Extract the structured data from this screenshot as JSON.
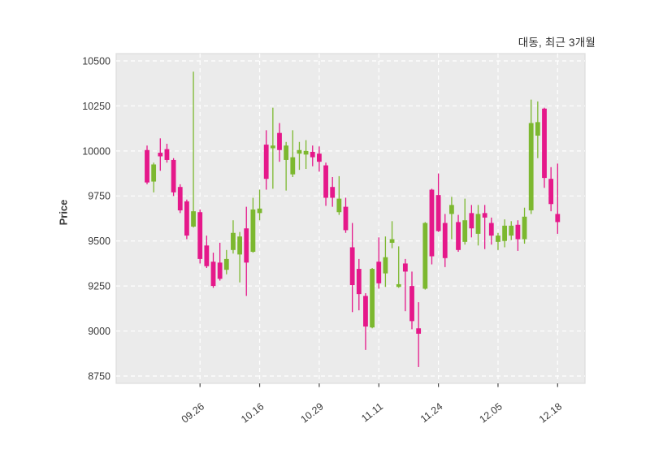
{
  "chart_data": {
    "type": "candlestick",
    "title": "대동, 최근 3개월",
    "ylabel": "Price",
    "xlabel": "",
    "y_ticks": [
      8750,
      9000,
      9250,
      9500,
      9750,
      10000,
      10250,
      10500
    ],
    "ylim": [
      8700,
      10545
    ],
    "x_tick_labels": [
      "09.26",
      "10.16",
      "10.29",
      "11.11",
      "11.24",
      "12.05",
      "12.18"
    ],
    "x_tick_indices": [
      8,
      17,
      26,
      35,
      44,
      53,
      62
    ],
    "num_candles": 63,
    "grid": "dashed-white-on-gray",
    "legend": "none",
    "ohlc_order": "open,high,low,close",
    "candles": [
      [
        10005,
        10030,
        9815,
        9825
      ],
      [
        9830,
        9935,
        9770,
        9925
      ],
      [
        9990,
        10070,
        9890,
        9970
      ],
      [
        10010,
        10040,
        9935,
        9950
      ],
      [
        9950,
        9960,
        9750,
        9770
      ],
      [
        9800,
        9815,
        9655,
        9670
      ],
      [
        9720,
        9730,
        9510,
        9530
      ],
      [
        9580,
        10440,
        9575,
        9665
      ],
      [
        9660,
        9675,
        9375,
        9400
      ],
      [
        9475,
        9530,
        9350,
        9360
      ],
      [
        9385,
        9435,
        9240,
        9250
      ],
      [
        9380,
        9490,
        9280,
        9290
      ],
      [
        9340,
        9450,
        9315,
        9400
      ],
      [
        9450,
        9615,
        9430,
        9545
      ],
      [
        9425,
        9550,
        9270,
        9525
      ],
      [
        9570,
        9690,
        9195,
        9380
      ],
      [
        9440,
        9740,
        9435,
        9675
      ],
      [
        9655,
        9785,
        9615,
        9680
      ],
      [
        10035,
        10115,
        9785,
        9845
      ],
      [
        10015,
        10240,
        9790,
        10030
      ],
      [
        10100,
        10155,
        9940,
        10005
      ],
      [
        9950,
        10050,
        9780,
        10030
      ],
      [
        9870,
        10115,
        9855,
        9965
      ],
      [
        9985,
        10050,
        9895,
        10005
      ],
      [
        9980,
        10060,
        9900,
        10000
      ],
      [
        9995,
        10030,
        9915,
        9965
      ],
      [
        9985,
        10025,
        9885,
        9940
      ],
      [
        9920,
        9935,
        9695,
        9740
      ],
      [
        9800,
        9855,
        9690,
        9740
      ],
      [
        9660,
        9860,
        9645,
        9735
      ],
      [
        9690,
        9740,
        9545,
        9560
      ],
      [
        9465,
        9600,
        9105,
        9255
      ],
      [
        9345,
        9400,
        9115,
        9205
      ],
      [
        9195,
        9210,
        8895,
        9025
      ],
      [
        9020,
        9350,
        9015,
        9345
      ],
      [
        9385,
        9520,
        9235,
        9265
      ],
      [
        9320,
        9525,
        9245,
        9410
      ],
      [
        9490,
        9610,
        9460,
        9510
      ],
      [
        9245,
        9470,
        9240,
        9260
      ],
      [
        9375,
        9400,
        9110,
        9330
      ],
      [
        9250,
        9330,
        9010,
        9055
      ],
      [
        9015,
        9160,
        8800,
        8985
      ],
      [
        9235,
        9605,
        9230,
        9600
      ],
      [
        9785,
        9790,
        9370,
        9415
      ],
      [
        9755,
        9875,
        9550,
        9555
      ],
      [
        9600,
        9650,
        9355,
        9405
      ],
      [
        9650,
        9745,
        9510,
        9700
      ],
      [
        9605,
        9645,
        9440,
        9450
      ],
      [
        9495,
        9735,
        9480,
        9615
      ],
      [
        9655,
        9700,
        9520,
        9570
      ],
      [
        9540,
        9700,
        9475,
        9650
      ],
      [
        9655,
        9700,
        9455,
        9630
      ],
      [
        9600,
        9630,
        9480,
        9530
      ],
      [
        9495,
        9545,
        9450,
        9530
      ],
      [
        9500,
        9620,
        9465,
        9585
      ],
      [
        9530,
        9610,
        9505,
        9585
      ],
      [
        9590,
        9615,
        9445,
        9510
      ],
      [
        9510,
        9685,
        9485,
        9635
      ],
      [
        9670,
        10285,
        9650,
        10155
      ],
      [
        10085,
        10275,
        9960,
        10160
      ],
      [
        10235,
        10240,
        9795,
        9850
      ],
      [
        9845,
        9910,
        9665,
        9705
      ],
      [
        9650,
        9930,
        9540,
        9605
      ]
    ],
    "colors": {
      "up": "#7CB82F",
      "down": "#E5188A",
      "plot_bg": "#EBEBEB",
      "grid": "#FFFFFF",
      "border": "#DEDEDE",
      "tick_text": "#3A3A3A",
      "tick_mark": "#4A4A4A",
      "title_text": "#2D2D2D",
      "figure_bg": "#FFFFFF"
    }
  }
}
